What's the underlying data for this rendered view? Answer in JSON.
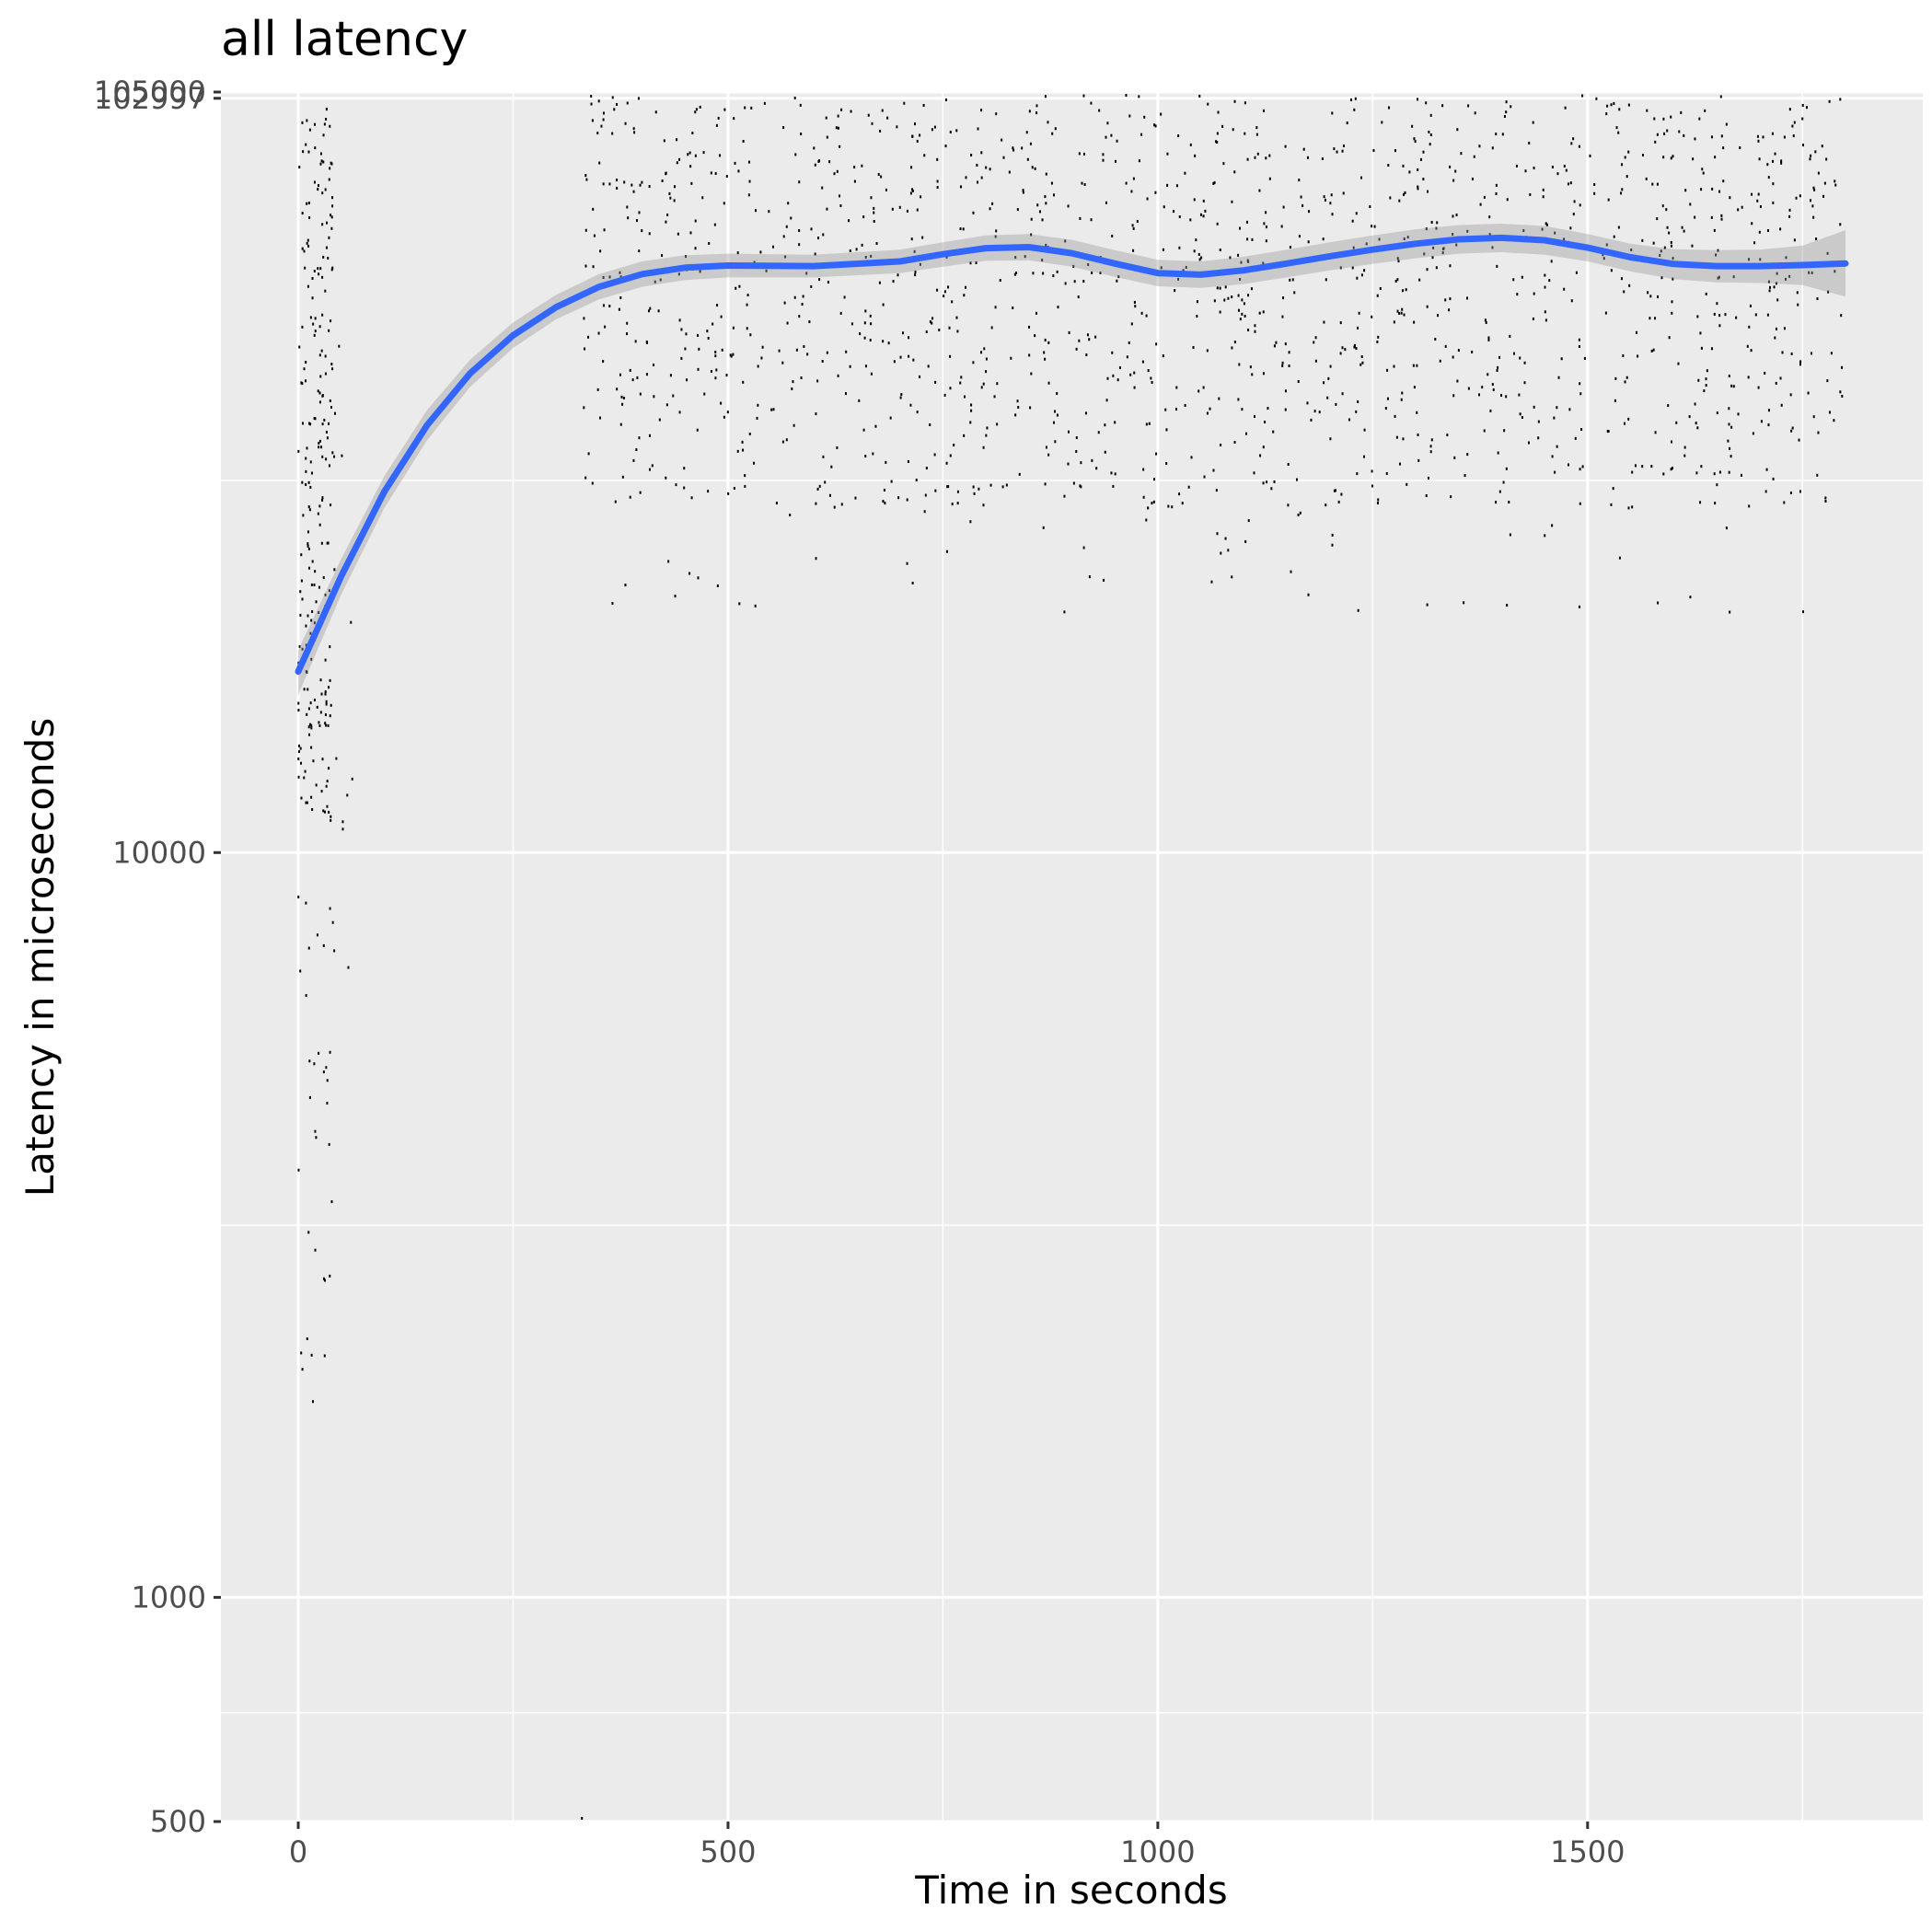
{
  "chart_data": {
    "type": "scatter",
    "title": "all latency",
    "xlabel": "Time in seconds",
    "ylabel": "Latency in microseconds",
    "x_scale": "linear",
    "y_scale": "log10",
    "xlim": [
      -90,
      1890
    ],
    "ylim": [
      500,
      105000
    ],
    "x_ticks": [
      0,
      500,
      1000,
      1500
    ],
    "x_tick_labels": [
      "0",
      "500",
      "1000",
      "1500"
    ],
    "x_minor_grid": [
      250,
      750,
      1250,
      1750
    ],
    "y_ticks": [
      500,
      1000,
      10000,
      102997,
      105000
    ],
    "y_tick_labels": [
      "500",
      "1000",
      "10000",
      "102997",
      "105000"
    ],
    "y_minor_grid": [
      3160,
      31600,
      700
    ],
    "grid": true,
    "panel_background": "#ebebeb",
    "point_color": "#000000",
    "smooth_color": "#3366ff",
    "ribbon_color": "#cccccc",
    "smooth": {
      "x": [
        0,
        50,
        100,
        150,
        200,
        250,
        300,
        350,
        400,
        450,
        500,
        600,
        700,
        750,
        800,
        850,
        900,
        950,
        1000,
        1050,
        1100,
        1150,
        1200,
        1250,
        1300,
        1350,
        1400,
        1450,
        1500,
        1550,
        1600,
        1650,
        1700,
        1750,
        1800
      ],
      "y": [
        17500,
        23500,
        30500,
        37500,
        44000,
        49500,
        54000,
        57500,
        59800,
        61000,
        61400,
        61300,
        62200,
        63600,
        64800,
        65000,
        63800,
        61800,
        60000,
        59700,
        60500,
        61800,
        63200,
        64500,
        65700,
        66600,
        66900,
        66400,
        64900,
        63000,
        61700,
        61300,
        61300,
        61500,
        61800
      ],
      "lower": [
        16300,
        22200,
        29000,
        35800,
        42200,
        47600,
        52000,
        55300,
        57500,
        58700,
        59200,
        59200,
        60000,
        61200,
        62300,
        62400,
        61200,
        59300,
        57600,
        57300,
        58000,
        59200,
        60500,
        61700,
        62800,
        63700,
        64000,
        63500,
        62200,
        60300,
        58900,
        58300,
        58200,
        57800,
        55800
      ],
      "upper": [
        18700,
        24800,
        32000,
        39300,
        45900,
        51500,
        56100,
        59800,
        62200,
        63400,
        63700,
        63500,
        64500,
        66000,
        67400,
        67700,
        66500,
        64400,
        62500,
        62200,
        63100,
        64500,
        66000,
        67400,
        68700,
        69600,
        69900,
        69400,
        67700,
        65700,
        64600,
        64400,
        64500,
        65300,
        68500
      ]
    }
  }
}
